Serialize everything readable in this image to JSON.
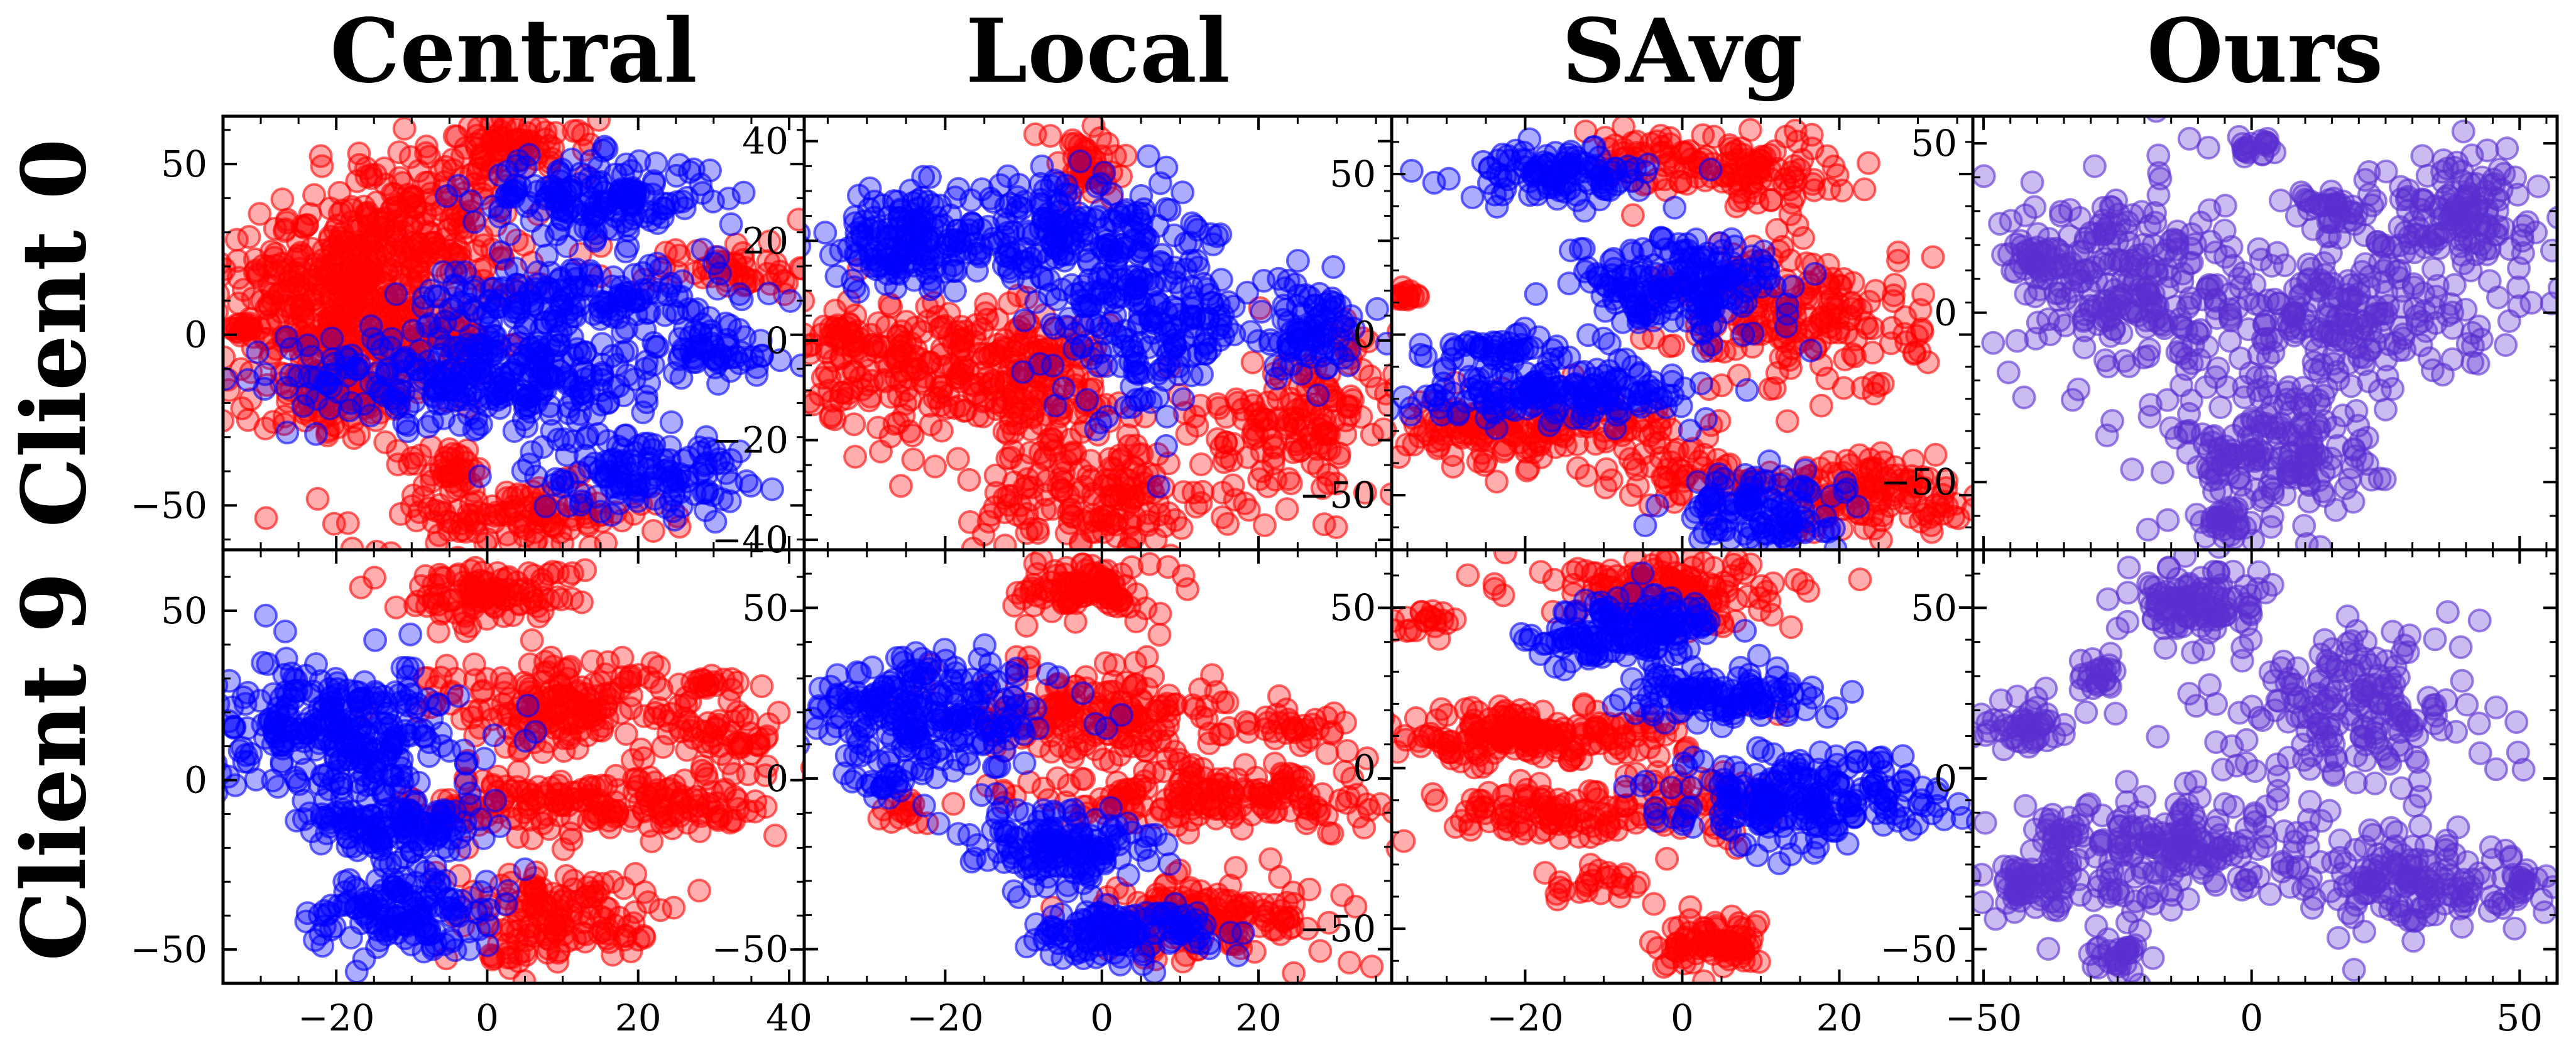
{
  "figure": {
    "column_titles": [
      "Central",
      "Local",
      "SAvg",
      "Ours"
    ],
    "row_titles": [
      "Client 0",
      "Client 9"
    ]
  },
  "colors": {
    "red": "#ff0000",
    "blue": "#0000ff",
    "purple": "#5a2fd0"
  },
  "chart_data": [
    {
      "type": "scatter",
      "row": 0,
      "col": 0,
      "xlim": [
        -35,
        42
      ],
      "ylim": [
        -63,
        64
      ],
      "yticks": [
        -50,
        0,
        50
      ],
      "ytick_side": "left",
      "xticks": [
        -20,
        0,
        20,
        40
      ],
      "series": [
        {
          "name": "",
          "color": "red",
          "clusters": [
            [
              -20,
              5,
              6,
              14,
              260
            ],
            [
              -10,
              35,
              8,
              10,
              180
            ],
            [
              4,
              55,
              5,
              4,
              70
            ],
            [
              -15,
              18,
              10,
              6,
              120
            ],
            [
              -20,
              -20,
              6,
              6,
              90
            ],
            [
              3,
              -53,
              10,
              5,
              130
            ],
            [
              33,
              20,
              5,
              4,
              50
            ],
            [
              -32,
              2,
              1,
              1,
              18
            ],
            [
              -5,
              -38,
              3,
              3,
              30
            ],
            [
              -8,
              -2,
              5,
              5,
              60
            ]
          ]
        },
        {
          "name": "",
          "color": "blue",
          "clusters": [
            [
              0,
              -12,
              13,
              7,
              300
            ],
            [
              14,
              40,
              8,
              6,
              170
            ],
            [
              12,
              10,
              11,
              6,
              180
            ],
            [
              20,
              -40,
              7,
              6,
              140
            ],
            [
              30,
              -5,
              4,
              4,
              50
            ]
          ]
        }
      ]
    },
    {
      "type": "scatter",
      "row": 0,
      "col": 1,
      "xlim": [
        -38,
        37
      ],
      "ylim": [
        -42,
        45
      ],
      "yticks": [
        -40,
        -20,
        0,
        20,
        40
      ],
      "ytick_side": "right",
      "xticks": [
        -20,
        0,
        20
      ],
      "series": [
        {
          "name": "",
          "color": "red",
          "clusters": [
            [
              -22,
              -5,
              8,
              7,
              200
            ],
            [
              -8,
              -10,
              6,
              8,
              150
            ],
            [
              0,
              -32,
              8,
              6,
              160
            ],
            [
              -2,
              35,
              3,
              4,
              50
            ],
            [
              28,
              -15,
              5,
              9,
              120
            ],
            [
              -33,
              2,
              2,
              2,
              25
            ],
            [
              18,
              -18,
              4,
              4,
              40
            ]
          ]
        },
        {
          "name": "",
          "color": "blue",
          "clusters": [
            [
              -24,
              20,
              7,
              5,
              170
            ],
            [
              -5,
              20,
              6,
              6,
              140
            ],
            [
              6,
              5,
              6,
              10,
              220
            ],
            [
              26,
              2,
              4,
              5,
              90
            ],
            [
              -10,
              30,
              2,
              2,
              10
            ]
          ]
        }
      ]
    },
    {
      "type": "scatter",
      "row": 0,
      "col": 2,
      "xlim": [
        -37,
        37
      ],
      "ylim": [
        -67,
        68
      ],
      "yticks": [
        -50,
        0,
        50
      ],
      "ytick_side": "right",
      "xticks": [
        -20,
        0,
        20
      ],
      "series": [
        {
          "name": "",
          "color": "red",
          "clusters": [
            [
              -20,
              -30,
              10,
              5,
              180
            ],
            [
              8,
              52,
              6,
              6,
              100
            ],
            [
              15,
              5,
              8,
              12,
              200
            ],
            [
              25,
              -50,
              8,
              6,
              140
            ],
            [
              -35,
              12,
              1,
              1,
              15
            ],
            [
              0,
              -45,
              4,
              4,
              40
            ],
            [
              -5,
              55,
              4,
              4,
              40
            ]
          ]
        },
        {
          "name": "",
          "color": "blue",
          "clusters": [
            [
              -16,
              50,
              6,
              4,
              110
            ],
            [
              0,
              15,
              7,
              8,
              200
            ],
            [
              -15,
              -18,
              10,
              4,
              170
            ],
            [
              10,
              -55,
              5,
              6,
              120
            ],
            [
              -25,
              -5,
              5,
              3,
              50
            ]
          ]
        }
      ]
    },
    {
      "type": "scatter",
      "row": 0,
      "col": 3,
      "xlim": [
        -52,
        57
      ],
      "ylim": [
        -70,
        58
      ],
      "yticks": [
        -50,
        0,
        50
      ],
      "ytick_side": "left",
      "xticks": [
        -50,
        0,
        50
      ],
      "series": [
        {
          "name": "",
          "color": "purple",
          "clusters": [
            [
              -25,
              10,
              10,
              15,
              220
            ],
            [
              5,
              -40,
              10,
              12,
              200
            ],
            [
              15,
              0,
              15,
              10,
              240
            ],
            [
              38,
              30,
              8,
              8,
              140
            ],
            [
              0,
              50,
              2,
              2,
              20
            ],
            [
              -40,
              15,
              3,
              3,
              30
            ],
            [
              -5,
              -62,
              3,
              3,
              30
            ],
            [
              15,
              30,
              4,
              4,
              40
            ]
          ]
        }
      ]
    },
    {
      "type": "scatter",
      "row": 1,
      "col": 0,
      "xlim": [
        -35,
        42
      ],
      "ylim": [
        -60,
        68
      ],
      "yticks": [
        -50,
        0,
        50
      ],
      "ytick_side": "left",
      "xticks": [
        -20,
        0,
        20,
        40
      ],
      "series": [
        {
          "name": "",
          "color": "red",
          "clusters": [
            [
              0,
              55,
              6,
              4,
              110
            ],
            [
              10,
              22,
              9,
              7,
              180
            ],
            [
              15,
              -7,
              12,
              5,
              200
            ],
            [
              10,
              -40,
              7,
              7,
              140
            ],
            [
              32,
              13,
              4,
              4,
              50
            ],
            [
              30,
              28,
              2,
              2,
              15
            ],
            [
              3,
              -52,
              2,
              2,
              12
            ]
          ]
        },
        {
          "name": "",
          "color": "blue",
          "clusters": [
            [
              -20,
              15,
              8,
              10,
              300
            ],
            [
              -12,
              -15,
              6,
              4,
              130
            ],
            [
              -12,
              -38,
              6,
              6,
              140
            ],
            [
              -5,
              -48,
              2,
              2,
              10
            ]
          ]
        }
      ]
    },
    {
      "type": "scatter",
      "row": 1,
      "col": 1,
      "xlim": [
        -38,
        37
      ],
      "ylim": [
        -60,
        67
      ],
      "yticks": [
        -50,
        0,
        50
      ],
      "ytick_side": "right",
      "xticks": [
        -20,
        0,
        20
      ],
      "series": [
        {
          "name": "",
          "color": "red",
          "clusters": [
            [
              -2,
              55,
              4,
              4,
              100
            ],
            [
              0,
              20,
              8,
              7,
              180
            ],
            [
              15,
              -5,
              12,
              5,
              190
            ],
            [
              15,
              -40,
              8,
              6,
              150
            ],
            [
              25,
              15,
              3,
              3,
              30
            ],
            [
              -25,
              -10,
              2,
              2,
              15
            ]
          ]
        },
        {
          "name": "",
          "color": "blue",
          "clusters": [
            [
              -22,
              18,
              8,
              9,
              250
            ],
            [
              -5,
              -20,
              6,
              6,
              150
            ],
            [
              2,
              -45,
              6,
              4,
              130
            ],
            [
              -28,
              -2,
              2,
              2,
              15
            ]
          ]
        }
      ]
    },
    {
      "type": "scatter",
      "row": 1,
      "col": 2,
      "xlim": [
        -37,
        37
      ],
      "ylim": [
        -67,
        68
      ],
      "yticks": [
        -50,
        0,
        50
      ],
      "ytick_side": "right",
      "xticks": [
        -20,
        0,
        20
      ],
      "series": [
        {
          "name": "",
          "color": "red",
          "clusters": [
            [
              -20,
              10,
              10,
              4,
              200
            ],
            [
              -2,
              55,
              8,
              5,
              150
            ],
            [
              5,
              -55,
              4,
              4,
              80
            ],
            [
              -18,
              -15,
              6,
              4,
              90
            ],
            [
              -33,
              45,
              2,
              2,
              20
            ],
            [
              -10,
              -35,
              3,
              3,
              25
            ],
            [
              0,
              -10,
              6,
              6,
              70
            ]
          ]
        },
        {
          "name": "",
          "color": "blue",
          "clusters": [
            [
              -5,
              45,
              5,
              5,
              130
            ],
            [
              5,
              22,
              6,
              4,
              120
            ],
            [
              15,
              -10,
              9,
              7,
              240
            ],
            [
              -15,
              40,
              3,
              3,
              30
            ]
          ]
        }
      ]
    },
    {
      "type": "scatter",
      "row": 1,
      "col": 3,
      "xlim": [
        -52,
        57
      ],
      "ylim": [
        -60,
        67
      ],
      "yticks": [
        -50,
        0,
        50
      ],
      "ytick_side": "left",
      "xticks": [
        -50,
        0,
        50
      ],
      "series": [
        {
          "name": "",
          "color": "purple",
          "clusters": [
            [
              -10,
              52,
              6,
              6,
              110
            ],
            [
              20,
              20,
              12,
              12,
              200
            ],
            [
              -15,
              -20,
              14,
              8,
              220
            ],
            [
              30,
              -30,
              10,
              7,
              160
            ],
            [
              -40,
              -30,
              5,
              5,
              70
            ],
            [
              -42,
              15,
              4,
              4,
              50
            ],
            [
              -28,
              30,
              2,
              3,
              25
            ],
            [
              -25,
              -52,
              3,
              3,
              30
            ],
            [
              50,
              -30,
              2,
              2,
              15
            ]
          ]
        }
      ]
    }
  ]
}
